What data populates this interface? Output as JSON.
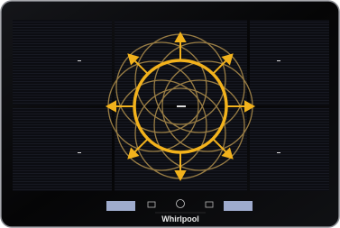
{
  "brand": "Whirlpool"
}
